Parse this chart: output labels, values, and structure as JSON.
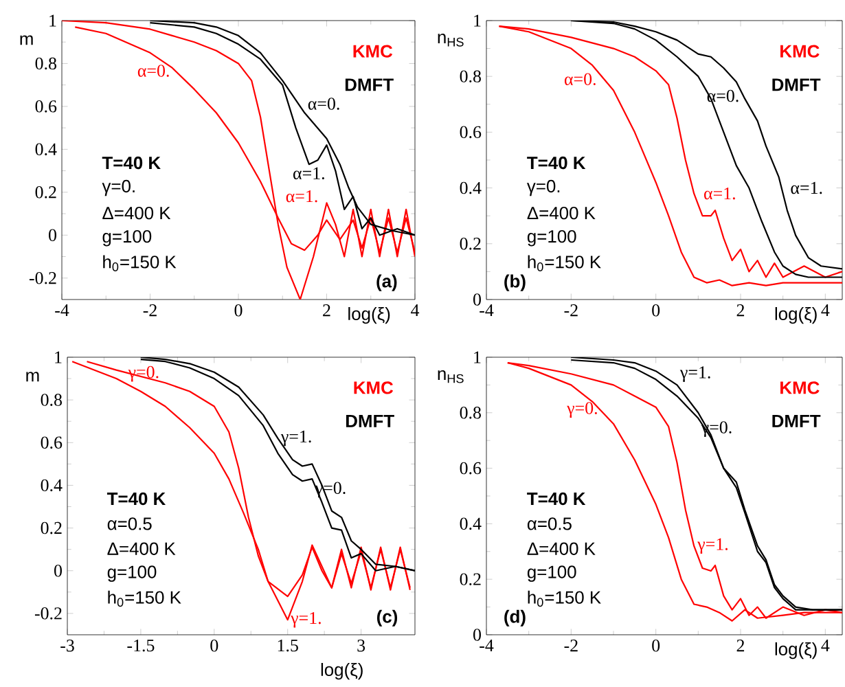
{
  "chart_data": [
    {
      "type": "line",
      "xlabel": "log(ξ)",
      "ylabel": "m",
      "xlim": [
        -4,
        4
      ],
      "ylim": [
        -0.3,
        1
      ],
      "xticks": [
        -4,
        -2,
        0,
        2,
        4
      ],
      "yticks": [
        -0.2,
        0,
        0.2,
        0.4,
        0.6,
        0.8,
        1
      ],
      "series": [
        {
          "name": "α=1.",
          "color": "#ff0000",
          "x": [
            -4,
            -3,
            -2,
            -1.5,
            -1,
            -0.5,
            0,
            0.3,
            0.5,
            0.7,
            0.9,
            1.1,
            1.4,
            1.7,
            2.0,
            2.2,
            2.4,
            2.6,
            2.8,
            3.0,
            3.2,
            3.4,
            3.6,
            3.8,
            4.0
          ],
          "values": [
            1.0,
            0.99,
            0.96,
            0.93,
            0.9,
            0.86,
            0.8,
            0.72,
            0.55,
            0.3,
            0.05,
            -0.15,
            -0.3,
            -0.1,
            0.15,
            0.05,
            -0.1,
            0.12,
            -0.1,
            0.12,
            -0.1,
            0.12,
            -0.1,
            0.12,
            -0.1
          ]
        },
        {
          "name": "α=0.",
          "color": "#ff0000",
          "x": [
            -3.7,
            -3,
            -2,
            -1.5,
            -1,
            -0.5,
            0,
            0.5,
            0.9,
            1.2,
            1.5,
            1.8,
            2.0,
            2.3,
            2.6,
            2.8,
            3.0,
            3.2,
            3.4,
            3.6,
            3.8,
            4.0
          ],
          "values": [
            0.97,
            0.94,
            0.85,
            0.78,
            0.68,
            0.57,
            0.43,
            0.25,
            0.08,
            -0.04,
            -0.07,
            0.0,
            0.07,
            -0.02,
            0.07,
            -0.06,
            0.08,
            -0.08,
            0.08,
            -0.08,
            0.08,
            -0.08
          ]
        },
        {
          "name": "α=0.",
          "color": "#000000",
          "x": [
            -2,
            -1,
            -0.5,
            0,
            0.5,
            1.0,
            1.5,
            2.0,
            2.3,
            2.5,
            2.7,
            3.0,
            3.5,
            4.0
          ],
          "values": [
            1.0,
            0.99,
            0.97,
            0.93,
            0.85,
            0.72,
            0.57,
            0.45,
            0.33,
            0.22,
            0.13,
            0.05,
            0.02,
            0.0
          ]
        },
        {
          "name": "α=1.",
          "color": "#000000",
          "x": [
            -2,
            -1,
            -0.5,
            0,
            0.5,
            1.0,
            1.3,
            1.6,
            1.8,
            2.0,
            2.2,
            2.4,
            2.6,
            2.8,
            3.0,
            3.2,
            3.6,
            4.0
          ],
          "values": [
            0.99,
            0.97,
            0.94,
            0.89,
            0.82,
            0.7,
            0.5,
            0.33,
            0.35,
            0.42,
            0.3,
            0.12,
            0.18,
            0.03,
            0.08,
            0.0,
            0.03,
            0.0
          ]
        }
      ],
      "annotations": [
        "KMC",
        "DMFT",
        "T=40 K",
        "γ=0.",
        "Δ=400 K",
        "g=100",
        "h$_{0}$=150 K",
        "(a)"
      ]
    },
    {
      "type": "line",
      "xlabel": "log(ξ)",
      "ylabel": "n$_{HS}$",
      "xlim": [
        -4,
        4.4
      ],
      "ylim": [
        0,
        1
      ],
      "xticks": [
        -4,
        -2,
        0,
        2,
        4
      ],
      "yticks": [
        0,
        0.2,
        0.4,
        0.6,
        0.8,
        1
      ],
      "series": [
        {
          "name": "α=1.",
          "color": "#ff0000",
          "x": [
            -3.7,
            -3,
            -2,
            -1,
            -0.5,
            0,
            0.3,
            0.5,
            0.7,
            0.9,
            1.1,
            1.3,
            1.4,
            1.6,
            1.8,
            2.0,
            2.2,
            2.4,
            2.6,
            2.8,
            3.0,
            3.5,
            4.0,
            4.4
          ],
          "values": [
            0.98,
            0.97,
            0.94,
            0.9,
            0.87,
            0.82,
            0.77,
            0.65,
            0.5,
            0.38,
            0.3,
            0.3,
            0.32,
            0.22,
            0.14,
            0.18,
            0.1,
            0.14,
            0.08,
            0.13,
            0.08,
            0.12,
            0.08,
            0.1
          ]
        },
        {
          "name": "α=0.",
          "color": "#ff0000",
          "x": [
            -3.7,
            -3,
            -2,
            -1.5,
            -1,
            -0.5,
            0,
            0.3,
            0.6,
            0.9,
            1.2,
            1.5,
            1.8,
            2.2,
            2.6,
            3.0,
            3.5,
            4.0,
            4.4
          ],
          "values": [
            0.98,
            0.96,
            0.9,
            0.84,
            0.75,
            0.6,
            0.42,
            0.3,
            0.17,
            0.08,
            0.06,
            0.07,
            0.05,
            0.06,
            0.05,
            0.06,
            0.06,
            0.06,
            0.06
          ]
        },
        {
          "name": "α=0.",
          "color": "#000000",
          "x": [
            -2,
            -1,
            -0.5,
            0,
            0.5,
            1.0,
            1.3,
            1.6,
            1.9,
            2.2,
            2.5,
            2.8,
            3.0,
            3.3,
            3.6,
            4.0,
            4.4
          ],
          "values": [
            1.0,
            0.99,
            0.97,
            0.93,
            0.87,
            0.8,
            0.72,
            0.6,
            0.48,
            0.4,
            0.28,
            0.17,
            0.12,
            0.09,
            0.08,
            0.08,
            0.08
          ]
        },
        {
          "name": "α=1.",
          "color": "#000000",
          "x": [
            -2,
            -1,
            -0.5,
            0,
            0.5,
            1.0,
            1.3,
            1.6,
            1.9,
            2.1,
            2.4,
            2.6,
            2.9,
            3.1,
            3.3,
            3.6,
            3.9,
            4.4
          ],
          "values": [
            1.0,
            0.995,
            0.98,
            0.96,
            0.93,
            0.88,
            0.87,
            0.83,
            0.78,
            0.72,
            0.64,
            0.55,
            0.44,
            0.32,
            0.23,
            0.15,
            0.12,
            0.11
          ]
        }
      ],
      "annotations": [
        "KMC",
        "DMFT",
        "T=40 K",
        "γ=0.",
        "Δ=400 K",
        "g=100",
        "h$_{0}$=150 K",
        "(b)"
      ]
    },
    {
      "type": "line",
      "xlabel": "log(ξ)",
      "ylabel": "m",
      "xlim": [
        -3,
        4.1
      ],
      "ylim": [
        -0.3,
        1
      ],
      "xticks": [
        -3,
        -1.5,
        0,
        1.5,
        3
      ],
      "yticks": [
        -0.2,
        0,
        0.2,
        0.4,
        0.6,
        0.8,
        1
      ],
      "series": [
        {
          "name": "γ=0.",
          "color": "#ff0000",
          "x": [
            -2.6,
            -2,
            -1,
            -0.5,
            0,
            0.3,
            0.5,
            0.7,
            0.9,
            1.1,
            1.5,
            1.8,
            2.0,
            2.2,
            2.4,
            2.6,
            2.8,
            3.0,
            3.2,
            3.4,
            3.6,
            3.8,
            4.0
          ],
          "values": [
            0.98,
            0.94,
            0.88,
            0.84,
            0.77,
            0.65,
            0.48,
            0.25,
            0.07,
            -0.05,
            -0.12,
            -0.02,
            0.11,
            0.0,
            -0.08,
            0.08,
            -0.06,
            0.09,
            -0.08,
            0.1,
            -0.08,
            0.1,
            -0.08
          ]
        },
        {
          "name": "γ=1.",
          "color": "#ff0000",
          "x": [
            -2.9,
            -2,
            -1.5,
            -1,
            -0.5,
            0,
            0.3,
            0.6,
            0.9,
            1.1,
            1.5,
            1.8,
            2.0,
            2.2,
            2.4,
            2.6,
            2.8,
            3.0,
            3.2,
            3.4,
            3.6,
            3.8,
            4.0
          ],
          "values": [
            0.98,
            0.9,
            0.84,
            0.77,
            0.67,
            0.55,
            0.43,
            0.27,
            0.1,
            -0.05,
            -0.23,
            -0.05,
            0.12,
            0.02,
            -0.08,
            0.1,
            -0.08,
            0.11,
            -0.09,
            0.11,
            -0.09,
            0.11,
            -0.09
          ]
        },
        {
          "name": "γ=1.",
          "color": "#000000",
          "x": [
            -1.5,
            -1,
            -0.5,
            0,
            0.5,
            1.0,
            1.3,
            1.6,
            1.8,
            2.0,
            2.2,
            2.4,
            2.6,
            2.8,
            3.0,
            3.3,
            3.7,
            4.1
          ],
          "values": [
            1.0,
            0.99,
            0.97,
            0.93,
            0.86,
            0.73,
            0.62,
            0.52,
            0.49,
            0.5,
            0.4,
            0.28,
            0.25,
            0.14,
            0.1,
            0.03,
            0.02,
            0.0
          ]
        },
        {
          "name": "γ=0.",
          "color": "#000000",
          "x": [
            -1.5,
            -1,
            -0.5,
            0,
            0.5,
            1.0,
            1.3,
            1.6,
            1.8,
            2.0,
            2.2,
            2.4,
            2.6,
            2.8,
            3.0,
            3.3,
            3.7,
            4.1
          ],
          "values": [
            0.99,
            0.98,
            0.95,
            0.9,
            0.82,
            0.68,
            0.55,
            0.45,
            0.42,
            0.43,
            0.32,
            0.2,
            0.19,
            0.06,
            0.08,
            0.0,
            0.02,
            0.0
          ]
        }
      ],
      "annotations": [
        "KMC",
        "DMFT",
        "T=40 K",
        "α=0.5",
        "Δ=400 K",
        "g=100",
        "h$_{0}$=150 K",
        "(c)"
      ]
    },
    {
      "type": "line",
      "xlabel": "log(ξ)",
      "ylabel": "n$_{HS}$",
      "xlim": [
        -4,
        4.4
      ],
      "ylim": [
        0,
        1
      ],
      "xticks": [
        -4,
        -2,
        0,
        2,
        4
      ],
      "yticks": [
        0,
        0.2,
        0.4,
        0.6,
        0.8,
        1
      ],
      "series": [
        {
          "name": "γ=1.",
          "color": "#ff0000",
          "x": [
            -3.5,
            -3,
            -2,
            -1,
            -0.5,
            0,
            0.3,
            0.5,
            0.7,
            0.9,
            1.1,
            1.3,
            1.4,
            1.6,
            1.8,
            2.0,
            2.2,
            2.4,
            2.6,
            3.0,
            3.5,
            4.0,
            4.4
          ],
          "values": [
            0.98,
            0.97,
            0.94,
            0.9,
            0.86,
            0.82,
            0.75,
            0.62,
            0.45,
            0.32,
            0.24,
            0.23,
            0.25,
            0.14,
            0.09,
            0.13,
            0.07,
            0.1,
            0.06,
            0.1,
            0.07,
            0.09,
            0.08
          ]
        },
        {
          "name": "γ=0.",
          "color": "#ff0000",
          "x": [
            -3.5,
            -3,
            -2,
            -1.5,
            -1,
            -0.5,
            0,
            0.3,
            0.6,
            0.9,
            1.2,
            1.5,
            1.8,
            2.1,
            2.4,
            3.0,
            3.5,
            4.0,
            4.4
          ],
          "values": [
            0.98,
            0.96,
            0.9,
            0.84,
            0.76,
            0.63,
            0.47,
            0.35,
            0.2,
            0.11,
            0.1,
            0.08,
            0.05,
            0.09,
            0.06,
            0.07,
            0.08,
            0.08,
            0.08
          ]
        },
        {
          "name": "γ=1.",
          "color": "#000000",
          "x": [
            -2,
            -1,
            -0.5,
            0,
            0.5,
            1.0,
            1.3,
            1.6,
            1.9,
            2.1,
            2.4,
            2.6,
            2.8,
            3.0,
            3.3,
            3.7,
            4.4
          ],
          "values": [
            1.0,
            0.99,
            0.98,
            0.95,
            0.9,
            0.8,
            0.72,
            0.6,
            0.55,
            0.45,
            0.32,
            0.27,
            0.18,
            0.14,
            0.1,
            0.09,
            0.09
          ]
        },
        {
          "name": "γ=0.",
          "color": "#000000",
          "x": [
            -2,
            -1,
            -0.5,
            0,
            0.5,
            1.0,
            1.3,
            1.6,
            1.9,
            2.1,
            2.4,
            2.6,
            2.8,
            3.0,
            3.3,
            3.7,
            4.4
          ],
          "values": [
            0.99,
            0.98,
            0.96,
            0.92,
            0.86,
            0.78,
            0.71,
            0.6,
            0.53,
            0.44,
            0.3,
            0.26,
            0.17,
            0.13,
            0.09,
            0.09,
            0.09
          ]
        }
      ],
      "annotations": [
        "KMC",
        "DMFT",
        "T=40 K",
        "α=0.5",
        "Δ=400 K",
        "g=100",
        "h$_{0}$=150 K",
        "(d)"
      ]
    }
  ]
}
